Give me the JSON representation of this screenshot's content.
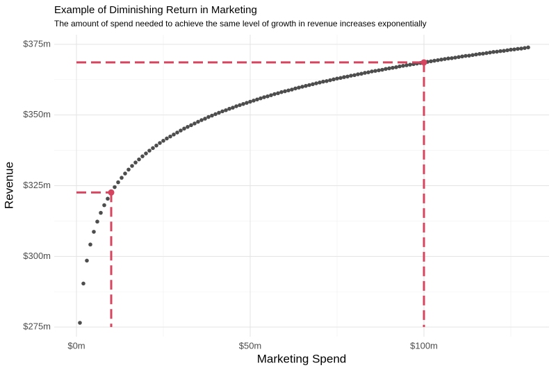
{
  "chart_data": {
    "type": "scatter",
    "title": "Example of Diminishing Return in Marketing",
    "subtitle": "The amount of spend needed to achieve the same level of growth in revenue increases exponentially",
    "x_label": "Marketing Spend",
    "y_label": "Revenue",
    "color": "#4d4d4d",
    "x": [
      1,
      2,
      3,
      4,
      5,
      6,
      7,
      8,
      9,
      10,
      11,
      12,
      13,
      14,
      15,
      16,
      17,
      18,
      19,
      20,
      21,
      22,
      23,
      24,
      25,
      26,
      27,
      28,
      29,
      30,
      31,
      32,
      33,
      34,
      35,
      36,
      37,
      38,
      39,
      40,
      41,
      42,
      43,
      44,
      45,
      46,
      47,
      48,
      49,
      50,
      51,
      52,
      53,
      54,
      55,
      56,
      57,
      58,
      59,
      60,
      61,
      62,
      63,
      64,
      65,
      66,
      67,
      68,
      69,
      70,
      71,
      72,
      73,
      74,
      75,
      76,
      77,
      78,
      79,
      80,
      81,
      82,
      83,
      84,
      85,
      86,
      87,
      88,
      89,
      90,
      91,
      92,
      93,
      94,
      95,
      96,
      97,
      98,
      99,
      100,
      101,
      102,
      103,
      104,
      105,
      106,
      107,
      108,
      109,
      110,
      111,
      112,
      113,
      114,
      115,
      116,
      117,
      118,
      119,
      120,
      121,
      122,
      123,
      124,
      125,
      126,
      127,
      128,
      129,
      130
    ],
    "values": [
      276.5,
      290.4,
      298.5,
      304.2,
      308.7,
      312.3,
      315.4,
      318.1,
      320.4,
      322.6,
      324.5,
      326.2,
      327.8,
      329.3,
      330.7,
      332.0,
      333.2,
      334.3,
      335.4,
      336.4,
      337.4,
      338.3,
      339.2,
      340.1,
      340.9,
      341.7,
      342.4,
      343.1,
      343.8,
      344.5,
      345.2,
      345.8,
      346.4,
      347.0,
      347.6,
      348.2,
      348.7,
      349.3,
      349.8,
      350.3,
      350.8,
      351.3,
      351.7,
      352.2,
      352.6,
      353.1,
      353.5,
      353.9,
      354.3,
      354.7,
      355.1,
      355.5,
      355.9,
      356.3,
      356.6,
      357.0,
      357.4,
      357.7,
      358.1,
      358.4,
      358.7,
      359.0,
      359.4,
      359.7,
      360.0,
      360.3,
      360.6,
      360.9,
      361.2,
      361.5,
      361.8,
      362.0,
      362.3,
      362.6,
      362.9,
      363.1,
      363.4,
      363.6,
      363.9,
      364.1,
      364.4,
      364.6,
      364.9,
      365.1,
      365.4,
      365.6,
      365.8,
      366.0,
      366.3,
      366.5,
      366.7,
      366.9,
      367.2,
      367.4,
      367.6,
      367.8,
      368.0,
      368.2,
      368.4,
      368.6,
      368.8,
      369.0,
      369.2,
      369.4,
      369.6,
      369.8,
      370.0,
      370.1,
      370.3,
      370.5,
      370.7,
      370.9,
      371.0,
      371.2,
      371.4,
      371.6,
      371.7,
      371.9,
      372.1,
      372.3,
      372.4,
      372.6,
      372.7,
      372.9,
      373.1,
      373.2,
      373.4,
      373.5,
      373.7,
      373.9
    ],
    "highlights": {
      "color": "#d6455f",
      "x": [
        10,
        100
      ],
      "values": [
        322.6,
        368.6
      ]
    },
    "xlim": [
      -6.4,
      136
    ],
    "ylim": [
      271.6,
      378.4
    ],
    "xticks": [
      {
        "value": 0,
        "label": "$0m"
      },
      {
        "value": 50,
        "label": "$50m"
      },
      {
        "value": 100,
        "label": "$100m"
      }
    ],
    "yticks": [
      {
        "value": 275,
        "label": "$275m"
      },
      {
        "value": 300,
        "label": "$300m"
      },
      {
        "value": 325,
        "label": "$325m"
      },
      {
        "value": 350,
        "label": "$350m"
      },
      {
        "value": 375,
        "label": "$375m"
      }
    ],
    "grid": true
  }
}
